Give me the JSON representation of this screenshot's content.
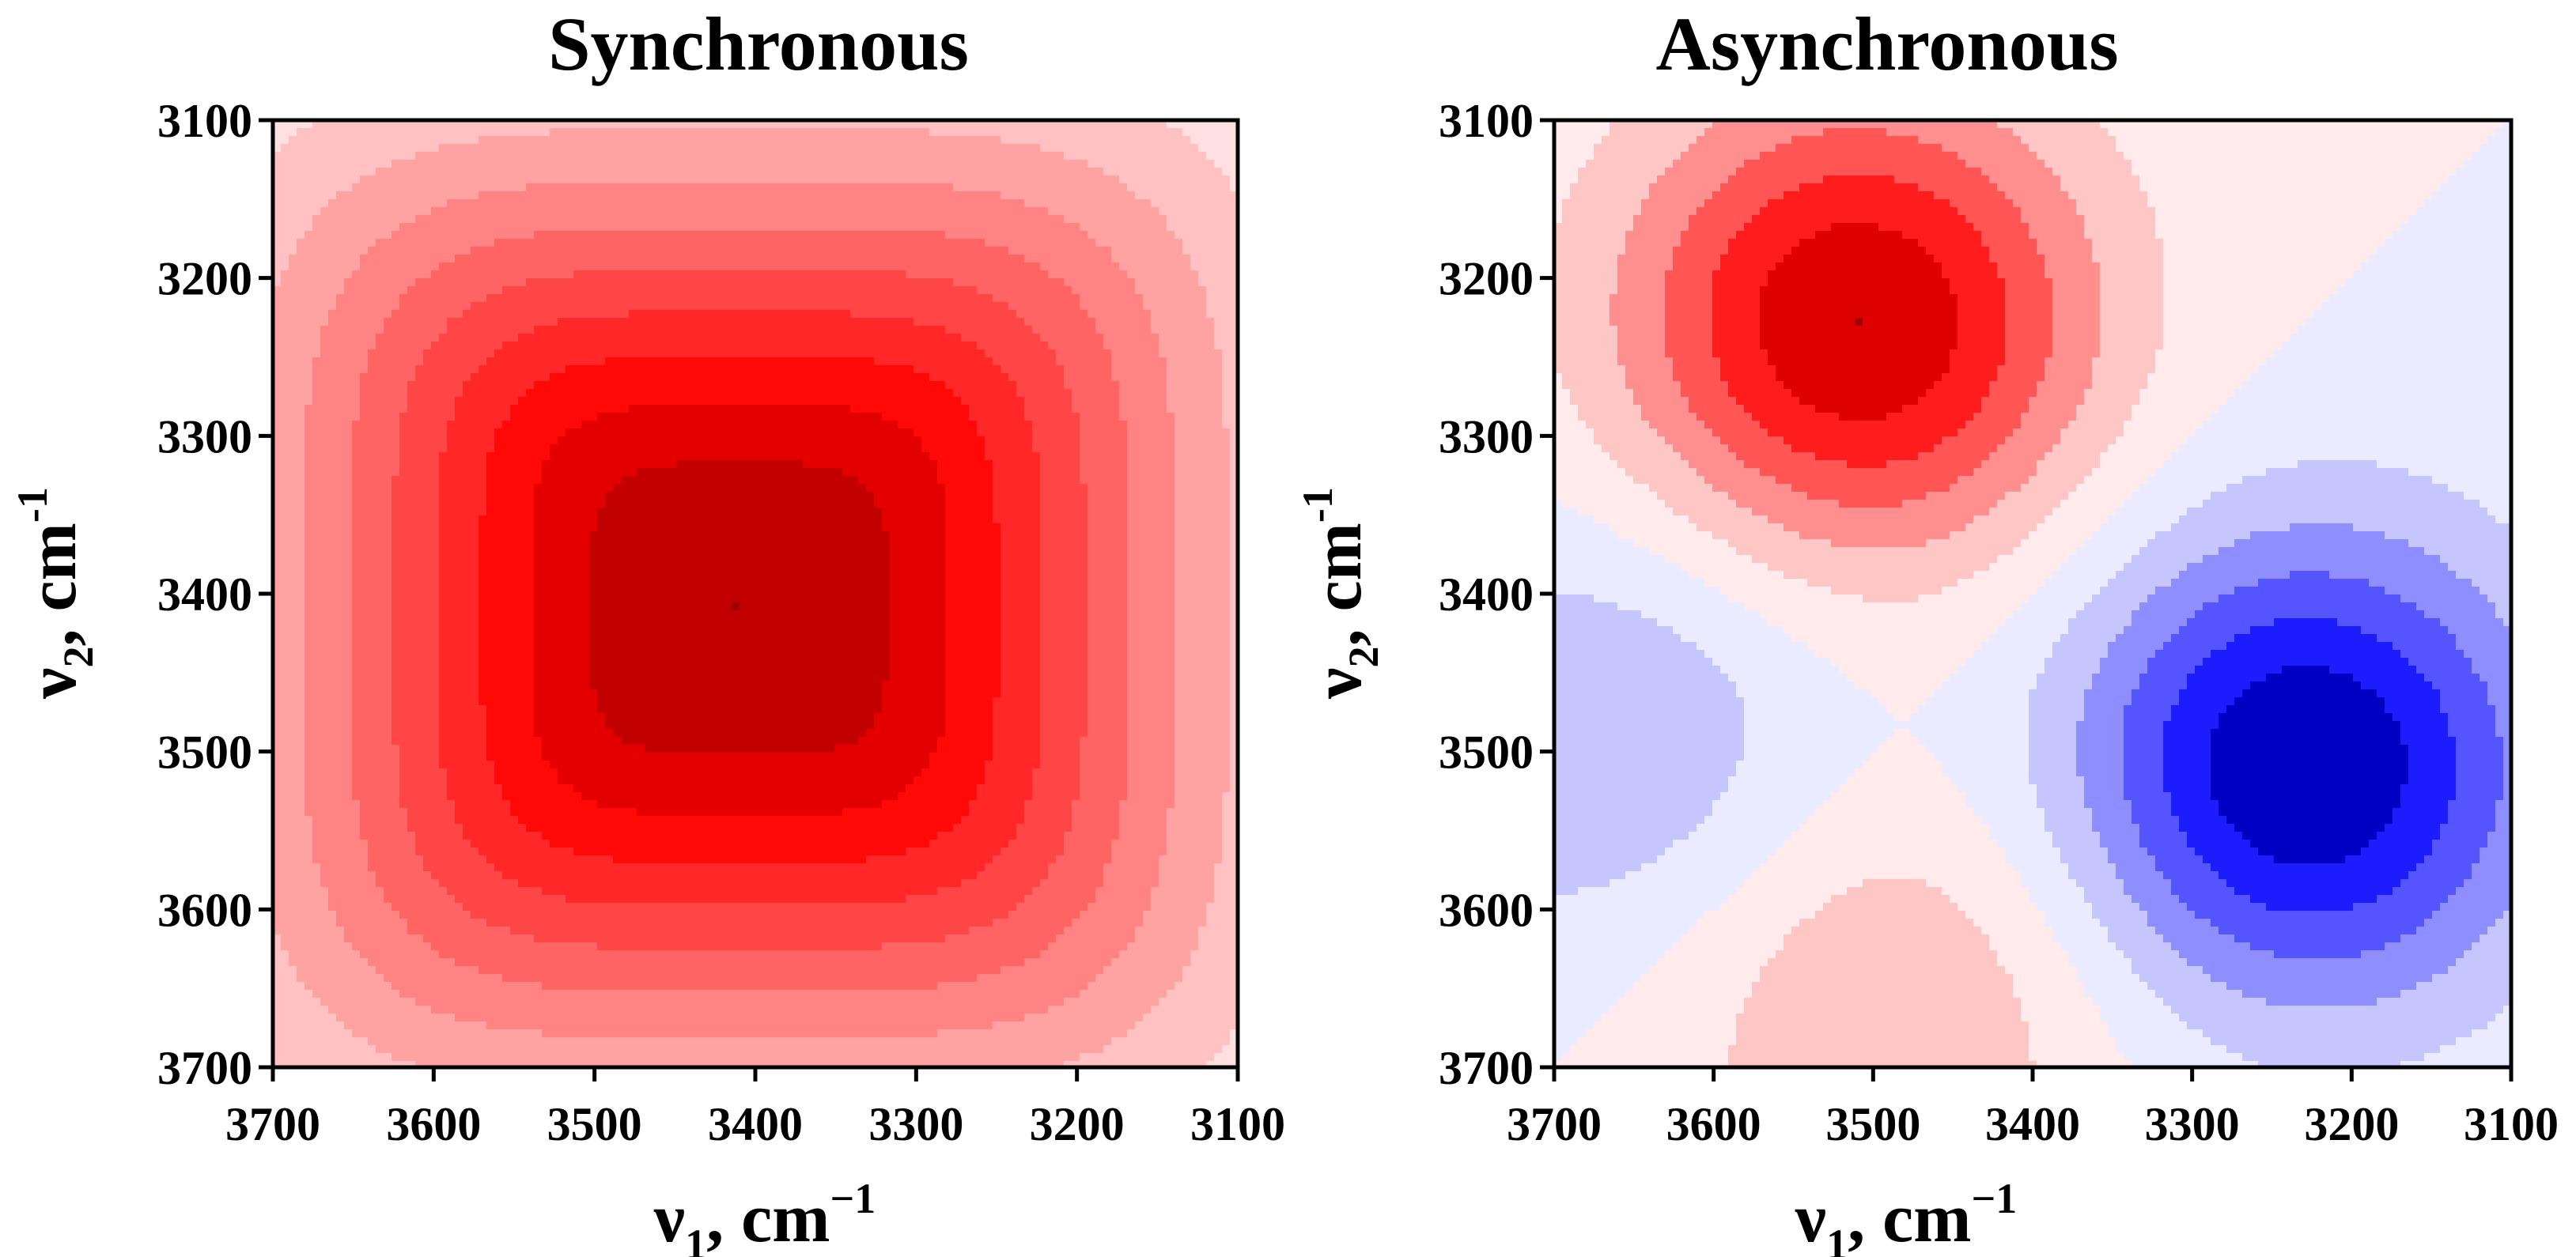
{
  "chart_data": [
    {
      "type": "heatmap",
      "title": "Synchronous",
      "xlabel": "ν1, cm−1",
      "ylabel": "ν2, cm-1",
      "xlabel_parts": {
        "symbol": "ν",
        "sub": "1",
        "rest": ", cm",
        "sup": "−1"
      },
      "ylabel_parts": {
        "symbol": "ν",
        "sub": "2",
        "rest": ", cm",
        "sup": "-1"
      },
      "x_ticks": [
        "3700",
        "3600",
        "3500",
        "3400",
        "3300",
        "3200",
        "3100"
      ],
      "y_ticks": [
        "3100",
        "3200",
        "3300",
        "3400",
        "3500",
        "3600",
        "3700"
      ],
      "xlim": [
        3700,
        3100
      ],
      "ylim": [
        3100,
        3700
      ],
      "field": "synchronous",
      "peaks": [
        {
          "nu1": 3410,
          "nu2": 3410,
          "sign": "positive",
          "relative_intensity": 1.0
        }
      ],
      "contour_levels": 11,
      "colors": {
        "positive": "#ff0000",
        "negative": "#0000ff",
        "peak": "#a00000",
        "zero": "#ffffff",
        "frame": "#000000"
      }
    },
    {
      "type": "heatmap",
      "title": "Asynchronous",
      "xlabel": "ν1, cm−1",
      "ylabel": "ν2, cm-1",
      "xlabel_parts": {
        "symbol": "ν",
        "sub": "1",
        "rest": ", cm",
        "sup": "−1"
      },
      "ylabel_parts": {
        "symbol": "ν",
        "sub": "2",
        "rest": ", cm",
        "sup": "-1"
      },
      "x_ticks": [
        "3700",
        "3600",
        "3500",
        "3400",
        "3300",
        "3200",
        "3100"
      ],
      "y_ticks": [
        "3100",
        "3200",
        "3300",
        "3400",
        "3500",
        "3600",
        "3700"
      ],
      "xlim": [
        3700,
        3100
      ],
      "ylim": [
        3100,
        3700
      ],
      "field": "asynchronous",
      "peaks": [
        {
          "nu1": 3510,
          "nu2": 3230,
          "sign": "positive",
          "relative_intensity": 1.0
        },
        {
          "nu1": 3230,
          "nu2": 3510,
          "sign": "negative",
          "relative_intensity": 1.0
        },
        {
          "nu1": 3490,
          "nu2": 3655,
          "sign": "positive",
          "relative_intensity": 0.35
        },
        {
          "nu1": 3655,
          "nu2": 3490,
          "sign": "negative",
          "relative_intensity": 0.35
        }
      ],
      "contour_levels": 6,
      "colors": {
        "positive": "#ff0000",
        "negative": "#0000ff",
        "peak_positive": "#a00000",
        "peak_negative": "#00004a",
        "zero": "#ffffff",
        "frame": "#000000"
      }
    }
  ]
}
